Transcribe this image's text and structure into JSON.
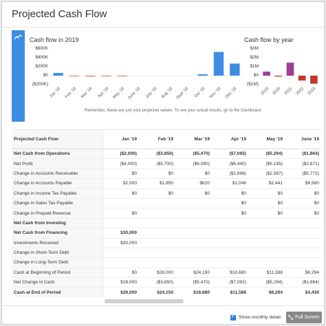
{
  "page": {
    "title": "Projected Cash Flow",
    "note": "Remember, these are just your projected values. To see your actual results, go to the Dashboard."
  },
  "icons": {
    "side_strip": "trend-line-icon",
    "fullscreen": "expand-arrows-icon",
    "checkbox": "checkmark-icon"
  },
  "colors": {
    "accent": "#3d8de3",
    "positive_year": "#9b3f97",
    "negative_year": "#c0392b",
    "month_bar": "#3d8de3",
    "month_bar_negative": "#e07b39"
  },
  "chart_data": [
    {
      "type": "bar",
      "title": "Cash flow in 2019",
      "categories": [
        "Jan '19",
        "Feb '19",
        "Mar '19",
        "Apr '19",
        "May '19",
        "June '19",
        "July '19",
        "Aug '19",
        "Sept '19",
        "Oct '19",
        "Nov '19",
        "Dec '19"
      ],
      "values": [
        600,
        -100,
        -200,
        -150,
        -150,
        0,
        0,
        0,
        0,
        300,
        5300,
        2700
      ],
      "yticks": [
        "$600K",
        "$400K",
        "$200K",
        "$0",
        "($200K)"
      ],
      "ylim": [
        -200000,
        600000
      ],
      "grid": false
    },
    {
      "type": "bar",
      "title": "Cash flow by year",
      "categories": [
        "2019",
        "2020",
        "2021",
        "2022",
        "2023"
      ],
      "values": [
        0.45,
        -0.1,
        1.45,
        -0.55,
        -0.9
      ],
      "yticks": [
        "$3M",
        "$2M",
        "$1M",
        "$0",
        "($1M)"
      ],
      "ylim": [
        -1,
        3
      ],
      "grid": false
    }
  ],
  "table": {
    "header_label": "Projected Cash Flow",
    "columns": [
      "Jan '19",
      "Feb '19",
      "Mar '19",
      "Apr '19",
      "May '19",
      "June '19"
    ],
    "rows": [
      {
        "label": "Net Cash from Operations",
        "bold": true,
        "values": [
          "($2,000)",
          "($3,850)",
          "($5,470)",
          "($7,092)",
          "($5,294)",
          "($1,864)"
        ]
      },
      {
        "label": "Net Profit",
        "bold": false,
        "values": [
          "($4,000)",
          "($5,700)",
          "($6,090)",
          "($6,440)",
          "($5,165)",
          "($2,671)"
        ]
      },
      {
        "label": "Change in Accounts Receivable",
        "bold": false,
        "values": [
          "$0",
          "$0",
          "$0",
          "($1,698)",
          "($2,567)",
          "($5,772)"
        ]
      },
      {
        "label": "Change in Accounts Payable",
        "bold": false,
        "values": [
          "$2,000",
          "$1,850",
          "$620",
          "$1,046",
          "$2,441",
          "$6,580"
        ]
      },
      {
        "label": "Change in Income Tax Payable",
        "bold": false,
        "values": [
          "$0",
          "$0",
          "$0",
          "$0",
          "$0",
          "$0"
        ]
      },
      {
        "label": "Change in Sales Tax Payable",
        "bold": false,
        "values": [
          "",
          "",
          "",
          "$0",
          "$0",
          "$0"
        ]
      },
      {
        "label": "Change in Prepaid Revenue",
        "bold": false,
        "values": [
          "$0",
          "",
          "",
          "$0",
          "$0",
          "$0"
        ]
      },
      {
        "label": "Net Cash from Investing",
        "bold": true,
        "values": [
          "",
          "",
          "",
          "",
          "",
          ""
        ]
      },
      {
        "label": "Net Cash from Financing",
        "bold": true,
        "values": [
          "$30,000",
          "",
          "",
          "",
          "",
          ""
        ]
      },
      {
        "label": "Investments Received",
        "bold": false,
        "values": [
          "$30,000",
          "",
          "",
          "",
          "",
          ""
        ]
      },
      {
        "label": "Change in Short-Term Debt",
        "bold": false,
        "values": [
          "",
          "",
          "",
          "",
          "",
          ""
        ]
      },
      {
        "label": "Change in Long-Term Debt",
        "bold": false,
        "values": [
          "",
          "",
          "",
          "",
          "",
          ""
        ]
      },
      {
        "label": "Cash at Beginning of Period",
        "bold": false,
        "values": [
          "$0",
          "$28,000",
          "$24,150",
          "$18,680",
          "$11,588",
          "$6,294"
        ]
      },
      {
        "label": "Net Change in Cash",
        "bold": false,
        "values": [
          "$28,000",
          "($3,850)",
          "($5,470)",
          "($7,092)",
          "($5,294)",
          "($1,864)"
        ]
      },
      {
        "label": "Cash at End of Period",
        "bold": true,
        "values": [
          "$28,000",
          "$24,150",
          "$18,680",
          "$11,588",
          "$6,294",
          "$4,430"
        ]
      }
    ]
  },
  "footer": {
    "show_monthly_detail_label": "Show monthly detail",
    "fullscreen_label": "Full Screen"
  }
}
